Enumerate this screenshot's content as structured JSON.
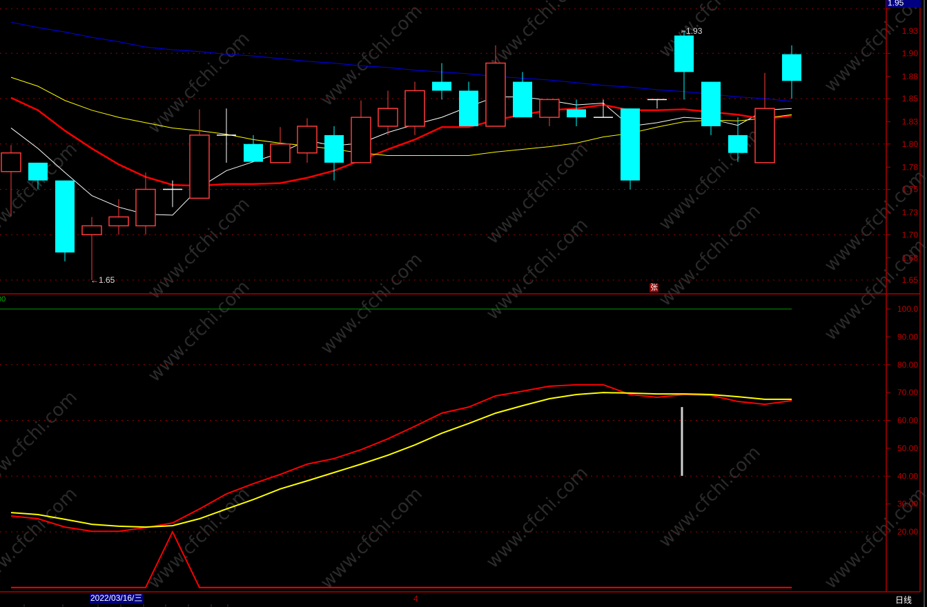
{
  "watermark": "www.cfchi.com",
  "colors": {
    "up": "#ff3b3b",
    "down": "#00ffff",
    "axis": "#b00000",
    "grid": "#a00000",
    "ma_short": "#ffffff",
    "ma_mid": "#ff0000",
    "ma_long": "#ffff00",
    "ma_xlong": "#0000ff",
    "k": "#ff0000",
    "d": "#ffff00",
    "signal": "#ff0000",
    "level100": "#00a000"
  },
  "top_price_badge": "1.95",
  "price_marker_high": "1.93",
  "price_marker_low": "1.65",
  "event_marker": "张",
  "indicator_label": "00",
  "footer": {
    "date_badge": "2022/03/16/三",
    "month_marker": "4",
    "period": "日线"
  },
  "chart_data": [
    {
      "type": "candlestick",
      "title": "",
      "ylim": [
        1.64,
        1.955
      ],
      "y_ticks": [
        "1.95",
        "1.93",
        "1.90",
        "1.88",
        "1.85",
        "1.83",
        "1.80",
        "1.78",
        "1.75",
        "1.73",
        "1.70",
        "1.68",
        "1.65"
      ],
      "y_tick_values": [
        1.955,
        1.93,
        1.905,
        1.879,
        1.854,
        1.828,
        1.803,
        1.777,
        1.752,
        1.726,
        1.701,
        1.675,
        1.65
      ],
      "grid": true,
      "candles": [
        {
          "o": 1.772,
          "h": 1.802,
          "l": 1.722,
          "c": 1.793
        },
        {
          "o": 1.782,
          "h": 1.782,
          "l": 1.752,
          "c": 1.762
        },
        {
          "o": 1.762,
          "h": 1.762,
          "l": 1.671,
          "c": 1.681
        },
        {
          "o": 1.701,
          "h": 1.721,
          "l": 1.65,
          "c": 1.711
        },
        {
          "o": 1.711,
          "h": 1.741,
          "l": 1.701,
          "c": 1.721
        },
        {
          "o": 1.711,
          "h": 1.771,
          "l": 1.701,
          "c": 1.752
        },
        {
          "o": 1.752,
          "h": 1.762,
          "l": 1.732,
          "c": 1.752
        },
        {
          "o": 1.742,
          "h": 1.842,
          "l": 1.742,
          "c": 1.813
        },
        {
          "o": 1.813,
          "h": 1.843,
          "l": 1.782,
          "c": 1.813
        },
        {
          "o": 1.803,
          "h": 1.813,
          "l": 1.783,
          "c": 1.783
        },
        {
          "o": 1.782,
          "h": 1.822,
          "l": 1.782,
          "c": 1.803
        },
        {
          "o": 1.793,
          "h": 1.832,
          "l": 1.782,
          "c": 1.823
        },
        {
          "o": 1.813,
          "h": 1.823,
          "l": 1.762,
          "c": 1.782
        },
        {
          "o": 1.782,
          "h": 1.852,
          "l": 1.782,
          "c": 1.833
        },
        {
          "o": 1.823,
          "h": 1.863,
          "l": 1.813,
          "c": 1.843
        },
        {
          "o": 1.823,
          "h": 1.873,
          "l": 1.813,
          "c": 1.863
        },
        {
          "o": 1.873,
          "h": 1.894,
          "l": 1.853,
          "c": 1.863
        },
        {
          "o": 1.863,
          "h": 1.873,
          "l": 1.823,
          "c": 1.823
        },
        {
          "o": 1.823,
          "h": 1.914,
          "l": 1.823,
          "c": 1.894
        },
        {
          "o": 1.873,
          "h": 1.884,
          "l": 1.833,
          "c": 1.833
        },
        {
          "o": 1.833,
          "h": 1.853,
          "l": 1.823,
          "c": 1.853
        },
        {
          "o": 1.842,
          "h": 1.853,
          "l": 1.823,
          "c": 1.833
        },
        {
          "o": 1.833,
          "h": 1.853,
          "l": 1.833,
          "c": 1.833
        },
        {
          "o": 1.843,
          "h": 1.843,
          "l": 1.752,
          "c": 1.762
        },
        {
          "o": 1.853,
          "h": 1.853,
          "l": 1.843,
          "c": 1.853
        },
        {
          "o": 1.925,
          "h": 1.93,
          "l": 1.853,
          "c": 1.884
        },
        {
          "o": 1.873,
          "h": 1.873,
          "l": 1.813,
          "c": 1.823
        },
        {
          "o": 1.813,
          "h": 1.833,
          "l": 1.783,
          "c": 1.793
        },
        {
          "o": 1.782,
          "h": 1.883,
          "l": 1.782,
          "c": 1.843
        },
        {
          "o": 1.904,
          "h": 1.914,
          "l": 1.854,
          "c": 1.874
        }
      ],
      "moving_averages": [
        {
          "color": "#ffffff",
          "width": 1,
          "values": [
            1.821,
            1.798,
            1.771,
            1.745,
            1.732,
            1.724,
            1.723,
            1.754,
            1.773,
            1.783,
            1.793,
            1.807,
            1.801,
            1.804,
            1.816,
            1.825,
            1.833,
            1.845,
            1.856,
            1.856,
            1.852,
            1.847,
            1.849,
            1.823,
            1.827,
            1.833,
            1.831,
            1.824,
            1.841,
            1.843
          ]
        },
        {
          "color": "#ff0000",
          "width": 2.5,
          "values": [
            1.855,
            1.841,
            1.818,
            1.798,
            1.78,
            1.766,
            1.757,
            1.756,
            1.758,
            1.758,
            1.759,
            1.765,
            1.773,
            1.785,
            1.797,
            1.808,
            1.822,
            1.822,
            1.83,
            1.836,
            1.841,
            1.843,
            1.847,
            1.841,
            1.841,
            1.842,
            1.839,
            1.836,
            1.831,
            1.835
          ]
        },
        {
          "color": "#ffff00",
          "width": 1,
          "values": [
            1.878,
            1.868,
            1.852,
            1.841,
            1.833,
            1.827,
            1.821,
            1.818,
            1.814,
            1.808,
            1.804,
            1.801,
            1.797,
            1.793,
            1.79,
            1.79,
            1.79,
            1.79,
            1.794,
            1.797,
            1.8,
            1.804,
            1.811,
            1.815,
            1.822,
            1.828,
            1.83,
            1.829,
            1.832,
            1.836
          ]
        },
        {
          "color": "#0000ff",
          "width": 1,
          "values": [
            1.94,
            1.934,
            1.929,
            1.923,
            1.918,
            1.912,
            1.909,
            1.907,
            1.904,
            1.902,
            1.899,
            1.896,
            1.894,
            1.891,
            1.889,
            1.886,
            1.884,
            1.882,
            1.879,
            1.877,
            1.875,
            1.872,
            1.869,
            1.867,
            1.864,
            1.862,
            1.859,
            1.856,
            1.854,
            1.851
          ]
        }
      ]
    },
    {
      "type": "line",
      "title": "",
      "ylim": [
        0,
        100
      ],
      "y_ticks": [
        "100.0",
        "90.00",
        "80.00",
        "70.00",
        "60.00",
        "50.00",
        "40.00",
        "30.00",
        "20.00"
      ],
      "y_tick_values": [
        100,
        90,
        80,
        70,
        60,
        50,
        40,
        30,
        20
      ],
      "grid": true,
      "reference_line": 100,
      "bar_marker": {
        "index": 25,
        "from": 40.1,
        "to": 64.8
      },
      "series": [
        {
          "color": "#ff0000",
          "width": 2,
          "values": [
            25.7,
            24.7,
            21.7,
            20.2,
            20.2,
            21.5,
            23.2,
            28.2,
            33.6,
            37.3,
            40.6,
            44.3,
            46.3,
            49.5,
            53.4,
            57.9,
            62.6,
            64.8,
            68.8,
            70.5,
            72.3,
            72.8,
            72.8,
            69.3,
            68.3,
            69.3,
            69.0,
            66.8,
            65.8,
            67.1
          ]
        },
        {
          "color": "#ffff00",
          "width": 2,
          "values": [
            26.9,
            26.2,
            24.5,
            22.7,
            22.0,
            21.7,
            22.2,
            24.7,
            28.2,
            31.6,
            35.4,
            38.3,
            41.3,
            44.3,
            47.5,
            51.2,
            55.4,
            58.9,
            62.6,
            65.3,
            67.8,
            69.3,
            70.0,
            69.8,
            69.5,
            69.5,
            69.3,
            68.5,
            67.6,
            67.6
          ]
        },
        {
          "color": "#ff0000",
          "width": 2,
          "values": [
            0,
            0,
            0,
            0,
            0,
            0,
            20,
            0,
            0,
            0,
            0,
            0,
            0,
            0,
            0,
            0,
            0,
            0,
            0,
            0,
            0,
            0,
            0,
            0,
            0,
            0,
            0,
            0,
            0,
            0
          ]
        }
      ]
    }
  ]
}
